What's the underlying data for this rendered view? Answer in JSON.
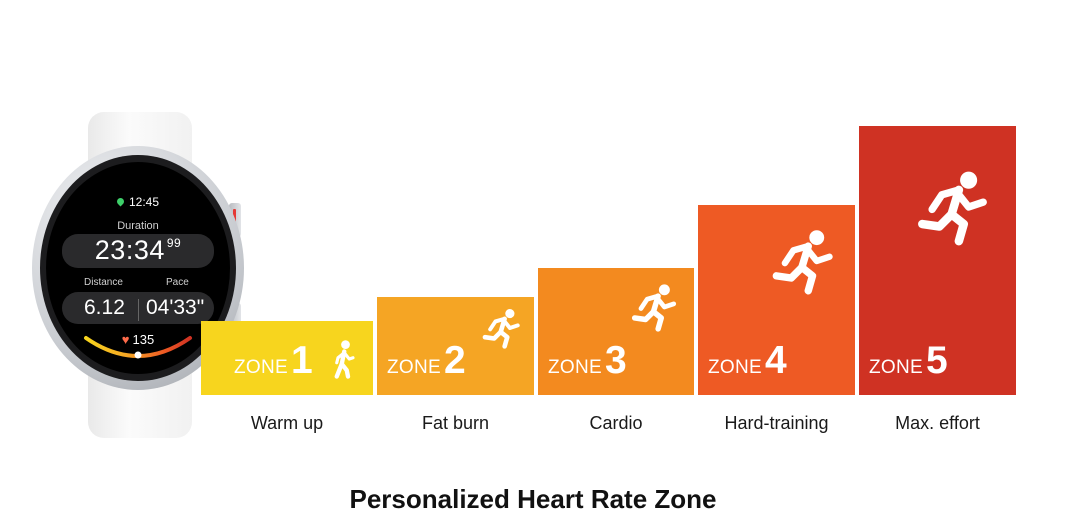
{
  "watch": {
    "time": "12:45",
    "duration_label": "Duration",
    "duration_main": "23:34",
    "duration_sub": "99",
    "distance_label": "Distance",
    "distance_value": "6.12",
    "pace_label": "Pace",
    "pace_value": "04'33\"",
    "heart_rate": "135",
    "icons": [
      "location-pin-icon",
      "heart-icon"
    ]
  },
  "zones": [
    {
      "word": "ZONE",
      "number": "1",
      "label": "Warm up",
      "color": "#f7d51e",
      "icon": "walking-person-icon"
    },
    {
      "word": "ZONE",
      "number": "2",
      "label": "Fat burn",
      "color": "#f5a524",
      "icon": "jogging-person-icon"
    },
    {
      "word": "ZONE",
      "number": "3",
      "label": "Cardio",
      "color": "#f38a1f",
      "icon": "running-person-icon"
    },
    {
      "word": "ZONE",
      "number": "4",
      "label": "Hard-training",
      "color": "#ee5a24",
      "icon": "running-person-icon"
    },
    {
      "word": "ZONE",
      "number": "5",
      "label": "Max. effort",
      "color": "#cf3223",
      "icon": "sprinting-person-icon"
    }
  ],
  "caption": "Personalized Heart Rate Zone"
}
